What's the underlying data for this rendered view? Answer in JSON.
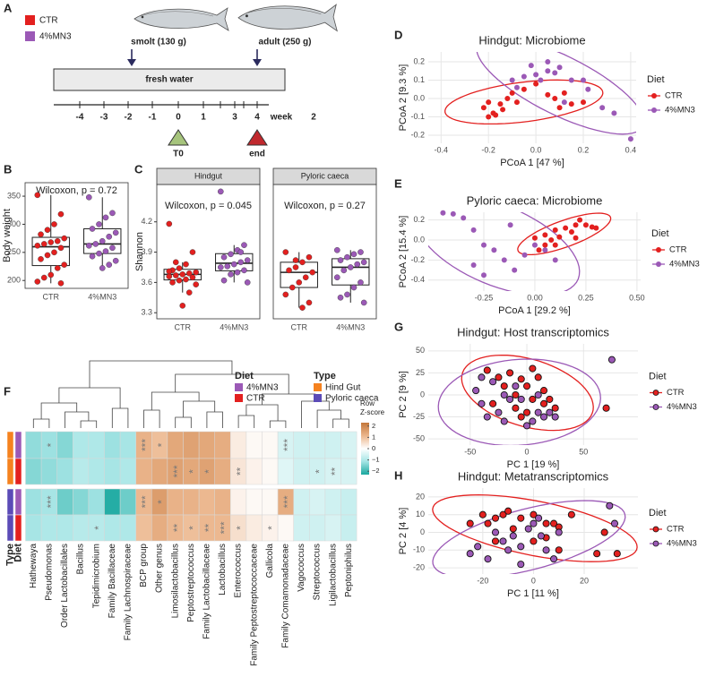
{
  "panel_labels": [
    "A",
    "B",
    "C",
    "D",
    "E",
    "F",
    "G",
    "H"
  ],
  "panel_a": {
    "legend": [
      {
        "label": "CTR",
        "color": "#e3201f"
      },
      {
        "label": "4%MN3",
        "color": "#9b59b6"
      }
    ],
    "smolt": "smolt (130 g)",
    "adult": "adult (250 g)",
    "phase": "fresh water",
    "week_ticks": [
      "-4",
      "-3",
      "-2",
      "-1",
      "0",
      "1",
      "3",
      "4"
    ],
    "week_label": "week",
    "extra": "2",
    "start": "T0",
    "end": "end"
  },
  "chart_data": [
    {
      "type": "box",
      "y_label": "Body weight",
      "categories": [
        "CTR",
        "4%MN3"
      ],
      "colors": [
        "#e3201f",
        "#9b59b6"
      ],
      "ylim": [
        186,
        374
      ],
      "yticks": [
        200,
        250,
        300,
        350
      ],
      "annotation": "Wilcoxon, p = 0.72",
      "groups": [
        {
          "values": [
            352,
            318,
            300,
            290,
            282,
            275,
            270,
            268,
            265,
            262,
            258,
            250,
            245,
            238,
            228,
            222,
            210,
            205,
            198,
            195
          ]
        },
        {
          "values": [
            348,
            320,
            312,
            300,
            292,
            285,
            278,
            270,
            265,
            262,
            258,
            252,
            248,
            243,
            235,
            228,
            222
          ]
        }
      ]
    },
    {
      "type": "box",
      "y_label": "Shannon",
      "categories": [
        "CTR",
        "4%MN3"
      ],
      "colors": [
        "#e3201f",
        "#9b59b6"
      ],
      "ylim": [
        3.24,
        4.57
      ],
      "yticks": [
        3.3,
        3.6,
        3.9,
        4.2
      ],
      "facets": [
        {
          "title": "Hindgut",
          "annotation": "Wilcoxon, p = 0.045",
          "groups": [
            {
              "values": [
                4.18,
                3.9,
                3.78,
                3.74,
                3.72,
                3.7,
                3.69,
                3.68,
                3.67,
                3.66,
                3.65,
                3.63,
                3.62,
                3.6,
                3.58,
                3.5,
                3.37,
                3.8,
                3.71
              ]
            },
            {
              "values": [
                4.5,
                3.97,
                3.92,
                3.88,
                3.85,
                3.82,
                3.8,
                3.78,
                3.76,
                3.75,
                3.72,
                3.7,
                3.68,
                3.62,
                3.6,
                3.9
              ]
            }
          ]
        },
        {
          "title": "Pyloric caeca",
          "annotation": "Wilcoxon, p = 0.27",
          "groups": [
            {
              "values": [
                3.9,
                3.85,
                3.8,
                3.75,
                3.72,
                3.7,
                3.65,
                3.6,
                3.55,
                3.48,
                3.4,
                3.35,
                3.82
              ]
            },
            {
              "values": [
                3.92,
                3.9,
                3.88,
                3.85,
                3.82,
                3.8,
                3.78,
                3.75,
                3.72,
                3.65,
                3.6,
                3.55,
                3.48,
                3.45,
                3.4
              ]
            }
          ]
        }
      ]
    },
    {
      "type": "scatter",
      "title": "Hindgut: Microbiome",
      "x_label": "PCoA 1 [47 %]",
      "y_label": "PCoA 2 [9.3 %]",
      "legend_title": "Diet",
      "grid": true,
      "outline": false,
      "xlim": [
        -0.454,
        0.423
      ],
      "ylim": [
        -0.244,
        0.254
      ],
      "xticks": [
        -0.4,
        -0.2,
        {
          "value": 0,
          "label": "0.0"
        },
        0.2,
        0.4
      ],
      "yticks": [
        -0.2,
        -0.1,
        {
          "value": 0,
          "label": "0.0"
        },
        0.1,
        0.2
      ],
      "series": [
        {
          "name": "CTR",
          "color": "#e3201f",
          "x": [
            -0.22,
            -0.2,
            -0.18,
            -0.15,
            -0.12,
            -0.1,
            -0.08,
            -0.05,
            -0.14,
            0.05,
            0.08,
            0.1,
            0.12,
            0.0,
            -0.2,
            -0.17,
            0.15,
            0.2
          ],
          "y": [
            -0.05,
            -0.1,
            -0.08,
            -0.03,
            0.0,
            0.03,
            -0.02,
            0.05,
            -0.06,
            0.02,
            0.0,
            -0.05,
            0.03,
            0.08,
            -0.02,
            -0.09,
            -0.03,
            -0.02
          ]
        },
        {
          "name": "4%MN3",
          "color": "#9b59b6",
          "x": [
            -0.1,
            -0.05,
            0.0,
            0.05,
            0.1,
            0.02,
            -0.08,
            0.15,
            0.2,
            0.22,
            0.28,
            0.33,
            0.4,
            0.05,
            -0.02,
            0.12,
            0.08
          ],
          "y": [
            0.1,
            0.12,
            0.13,
            0.15,
            0.17,
            0.1,
            0.06,
            0.1,
            0.1,
            0.05,
            -0.05,
            -0.08,
            -0.22,
            0.2,
            0.18,
            -0.02,
            0.14
          ]
        }
      ]
    },
    {
      "type": "scatter",
      "title": "Pyloric caeca: Microbiome",
      "x_label": "PCoA 1 [29.2 %]",
      "y_label": "PCoA 2 [15.4 %]",
      "legend_title": "Diet",
      "grid": true,
      "outline": false,
      "xlim": [
        -0.522,
        0.518
      ],
      "ylim": [
        -0.509,
        0.277
      ],
      "xticks": [
        -0.25,
        {
          "value": 0,
          "label": "0.00"
        },
        0.25,
        {
          "value": 0.5,
          "label": "0.50"
        }
      ],
      "yticks": [
        -0.4,
        -0.2,
        {
          "value": 0,
          "label": "0.0"
        },
        0.2
      ],
      "series": [
        {
          "name": "CTR",
          "color": "#e3201f",
          "x": [
            0.05,
            0.1,
            0.15,
            0.2,
            0.22,
            0.25,
            0.28,
            0.12,
            0.08,
            0.0,
            0.05,
            0.1,
            0.18,
            0.3,
            0.2,
            0.02
          ],
          "y": [
            0.05,
            0.1,
            0.12,
            0.15,
            0.2,
            0.15,
            0.13,
            0.03,
            0.0,
            0.02,
            -0.05,
            -0.05,
            0.08,
            0.12,
            0.02,
            -0.1
          ]
        },
        {
          "name": "4%MN3",
          "color": "#9b59b6",
          "x": [
            -0.45,
            -0.4,
            -0.35,
            -0.3,
            -0.25,
            -0.2,
            -0.15,
            -0.1,
            -0.25,
            -0.05,
            0.0,
            0.05,
            -0.12,
            0.1,
            -0.3
          ],
          "y": [
            0.27,
            0.26,
            0.22,
            0.1,
            -0.05,
            -0.1,
            -0.2,
            -0.3,
            -0.35,
            -0.15,
            -0.05,
            -0.1,
            0.15,
            -0.2,
            -0.25
          ]
        }
      ]
    },
    {
      "type": "scatter",
      "title": "Hindgut: Host transcriptomics",
      "x_label": "PC 1 [19 %]",
      "y_label": "PC 2 [9 %]",
      "legend_title": "Diet",
      "grid": true,
      "outline": true,
      "xlim": [
        -87,
        98
      ],
      "ylim": [
        -57,
        58
      ],
      "xticks": [
        -50,
        0,
        50
      ],
      "yticks": [
        -50,
        -25,
        0,
        25,
        50
      ],
      "series": [
        {
          "name": "CTR",
          "color": "#e3201f",
          "x": [
            -35,
            -25,
            -20,
            -15,
            -10,
            -5,
            0,
            5,
            10,
            15,
            20,
            -30,
            -5,
            25,
            70,
            -10,
            5,
            0,
            15
          ],
          "y": [
            28,
            20,
            10,
            25,
            0,
            18,
            10,
            -5,
            20,
            -10,
            -5,
            -10,
            -25,
            -15,
            -15,
            -15,
            30,
            -20,
            5
          ]
        },
        {
          "name": "4%MN3",
          "color": "#9b59b6",
          "x": [
            -45,
            -40,
            -35,
            -30,
            -25,
            -20,
            -15,
            -10,
            -5,
            0,
            5,
            10,
            15,
            20,
            -20,
            25,
            75,
            -40,
            10
          ],
          "y": [
            5,
            -10,
            -25,
            15,
            -20,
            0,
            -5,
            10,
            -5,
            -35,
            -30,
            -20,
            -25,
            -20,
            -30,
            -25,
            40,
            20,
            0
          ]
        }
      ]
    },
    {
      "type": "scatter",
      "title": "Hindgut: Metatranscriptomics",
      "x_label": "PC 1 [11 %]",
      "y_label": "PC 2 [4 %]",
      "legend_title": "Diet",
      "grid": true,
      "outline": true,
      "xlim": [
        -41.5,
        41.2
      ],
      "ylim": [
        -23.5,
        25
      ],
      "xticks": [
        -20,
        0,
        20
      ],
      "yticks": [
        -20,
        -10,
        0,
        10,
        20
      ],
      "series": [
        {
          "name": "CTR",
          "color": "#e3201f",
          "x": [
            -20,
            -18,
            -15,
            -12,
            -10,
            -8,
            -5,
            0,
            5,
            8,
            10,
            15,
            -15,
            0,
            5,
            25,
            28,
            33,
            -25,
            10
          ],
          "y": [
            10,
            5,
            8,
            10,
            12,
            2,
            8,
            10,
            5,
            5,
            3,
            10,
            -5,
            -5,
            -3,
            -12,
            0,
            -12,
            5,
            -10
          ]
        },
        {
          "name": "4%MN3",
          "color": "#9b59b6",
          "x": [
            -25,
            -22,
            -18,
            -15,
            -12,
            -10,
            -5,
            -2,
            0,
            3,
            5,
            8,
            10,
            -5,
            30,
            32,
            2,
            -8
          ],
          "y": [
            -12,
            -8,
            -15,
            0,
            -5,
            -10,
            -8,
            2,
            5,
            -2,
            -10,
            -15,
            0,
            -18,
            15,
            5,
            8,
            -2
          ]
        }
      ]
    },
    {
      "type": "heatmap",
      "columns": [
        "Hathewaya",
        "Pseudomonas",
        "Order Lactobacillales",
        "Bacillus",
        "Tepidimicrobium",
        "Family Bacillaceae",
        "Family Lachnospiraceae",
        "BCP group",
        "Other genus",
        "Limosilactobacillus",
        "Peptostreptococcus",
        "Family Lactobacillaceae",
        "Lactobacillus",
        "Enterococcus",
        "Family Peptostreptococcaceae",
        "Gallicola",
        "Family Comamonadaceae",
        "Vagococcus",
        "Streptococcus",
        "Ligilactobacillus",
        "Peptoniphilus"
      ],
      "annotation_labels": [
        "Type",
        "Diet"
      ],
      "rows": [
        {
          "type_color": "#f5821f",
          "diet_color": "#9b59b6"
        },
        {
          "type_color": "#f5821f",
          "diet_color": "#e3201f"
        },
        {
          "type_color": "#5b4bb7",
          "diet_color": "#9b59b6"
        },
        {
          "type_color": "#5b4bb7",
          "diet_color": "#e3201f"
        }
      ],
      "values": [
        [
          -1.3,
          -1.2,
          -1.4,
          -1.0,
          -1.0,
          -1.2,
          -1.1,
          1.2,
          1.0,
          1.4,
          1.5,
          1.4,
          1.3,
          0.3,
          0.1,
          0.1,
          -0.5,
          -0.6,
          -0.6,
          -0.6,
          -0.5
        ],
        [
          -1.4,
          -1.3,
          -1.2,
          -0.9,
          -1.0,
          -1.1,
          -1.0,
          1.2,
          1.4,
          1.5,
          1.4,
          1.5,
          1.3,
          0.4,
          0.2,
          0.1,
          -0.4,
          -0.6,
          -0.6,
          -0.5,
          -0.5
        ],
        [
          -1.2,
          -1.1,
          -1.6,
          -1.4,
          -1.2,
          -2.2,
          -1.6,
          1.1,
          1.6,
          1.2,
          1.2,
          1.1,
          1.2,
          0.2,
          0.1,
          0.1,
          1.3,
          -0.6,
          -0.5,
          -0.6,
          -0.7
        ],
        [
          -1.1,
          -1.0,
          -1.0,
          -0.9,
          -0.9,
          -1.0,
          -1.0,
          1.0,
          1.3,
          1.1,
          1.0,
          1.1,
          1.1,
          0.5,
          0.3,
          0.2,
          0.1,
          -0.6,
          -0.6,
          -0.5,
          -0.7
        ]
      ],
      "stars": [
        [
          null,
          "*",
          null,
          null,
          null,
          null,
          null,
          "***",
          "*",
          null,
          null,
          null,
          null,
          null,
          null,
          null,
          "***",
          null,
          null,
          null,
          null
        ],
        [
          null,
          null,
          null,
          null,
          null,
          null,
          null,
          null,
          null,
          "***",
          "*",
          "*",
          null,
          "**",
          null,
          null,
          null,
          null,
          "*",
          "**",
          null
        ],
        [
          null,
          "***",
          null,
          null,
          null,
          null,
          null,
          "***",
          "*",
          null,
          null,
          null,
          null,
          null,
          null,
          null,
          "***",
          null,
          null,
          null,
          null
        ],
        [
          null,
          null,
          null,
          null,
          "*",
          null,
          null,
          null,
          null,
          "**",
          "*",
          "**",
          "***",
          "*",
          null,
          "*",
          null,
          null,
          null,
          null,
          null
        ]
      ],
      "legends": [
        {
          "title": "Diet",
          "items": [
            {
              "label": "4%MN3",
              "color": "#9b59b6"
            },
            {
              "label": "CTR",
              "color": "#e3201f"
            }
          ]
        },
        {
          "title": "Type",
          "items": [
            {
              "label": "Hind Gut",
              "color": "#f5821f"
            },
            {
              "label": "Pyloric caeca",
              "color": "#5b4bb7"
            }
          ]
        }
      ],
      "colorbar": {
        "title_lines": [
          "Row",
          "Z-score"
        ],
        "lim": [
          -2.3,
          2.3
        ],
        "colors": [
          "#19a89f",
          "#a3e4e4",
          "#ffffff",
          "#ebb58b",
          "#c4773b"
        ],
        "ticks": [
          2,
          1,
          0,
          {
            "value": -1,
            "label": "−1"
          },
          {
            "value": -2,
            "label": "−2"
          }
        ]
      }
    }
  ]
}
